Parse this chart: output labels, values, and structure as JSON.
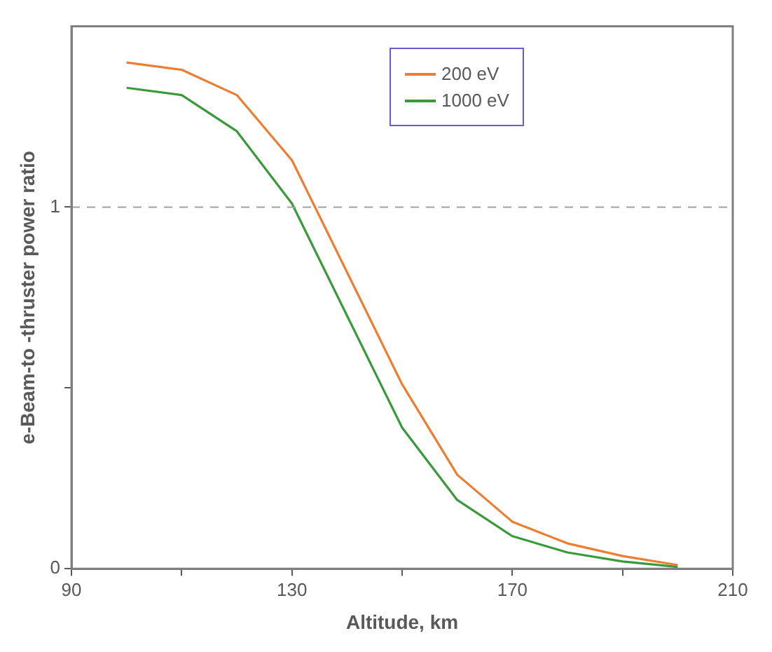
{
  "chart_data": {
    "type": "line",
    "xlabel": "Altitude, km",
    "ylabel": "e-Beam-to -thruster power ratio",
    "x": [
      100,
      110,
      120,
      130,
      140,
      150,
      160,
      170,
      180,
      190,
      200
    ],
    "series": [
      {
        "name": "200 eV",
        "color": "#ed7d31",
        "values": [
          1.4,
          1.38,
          1.31,
          1.13,
          0.82,
          0.51,
          0.26,
          0.13,
          0.07,
          0.035,
          0.01
        ]
      },
      {
        "name": "1000 eV",
        "color": "#3a9a3a",
        "values": [
          1.33,
          1.31,
          1.21,
          1.01,
          0.7,
          0.39,
          0.19,
          0.09,
          0.045,
          0.02,
          0.005
        ]
      }
    ],
    "xlim": [
      90,
      210
    ],
    "xticks": [
      90,
      {
        "value": 110,
        "label": null
      },
      130,
      {
        "value": 150,
        "label": null
      },
      170,
      {
        "value": 190,
        "label": null
      },
      210
    ],
    "ylim": [
      0,
      1.5
    ],
    "yticks": [
      0,
      {
        "value": 0.5,
        "label": null
      },
      1
    ],
    "ref_lines": [
      {
        "axis": "y",
        "value": 1,
        "color": "#a0a0a0",
        "line_style": "dashed"
      }
    ],
    "grid": false,
    "legend": "top right",
    "marker": "none",
    "line_style": "solid"
  }
}
